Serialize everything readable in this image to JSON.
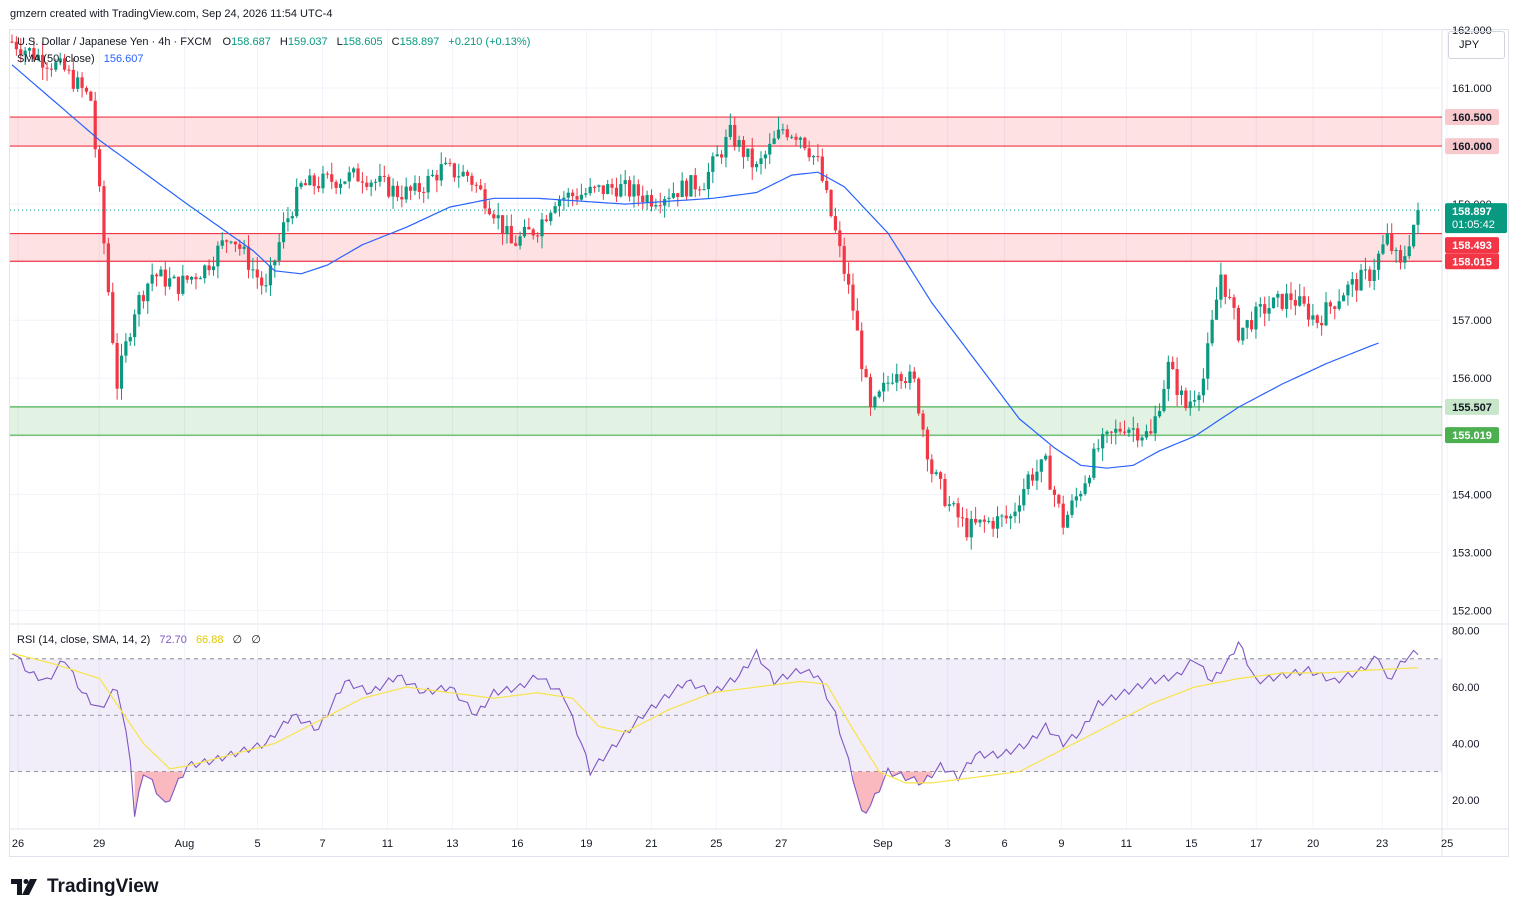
{
  "header": {
    "note": "gmzern created with TradingView.com, Sep 24, 2026 11:54 UTC-4"
  },
  "legend": {
    "symbol": "U.S. Dollar / Japanese Yen · 4h · FXCM",
    "o_label": "O",
    "o_value": "158.687",
    "h_label": "H",
    "h_value": "159.037",
    "l_label": "L",
    "l_value": "158.605",
    "c_label": "C",
    "c_value": "158.897",
    "change": "+0.210 (+0.13%)",
    "sma_label": "SMA (50, close)",
    "sma_value": "156.607"
  },
  "rsi_legend": {
    "label": "RSI (14, close, SMA, 14, 2)",
    "rsi_value": "72.70",
    "sma_value": "66.88",
    "extra1": "∅",
    "extra2": "∅"
  },
  "currency": "JPY",
  "brand": "TradingView",
  "colors": {
    "up": "#089981",
    "down": "#f23645",
    "sma": "#2962ff",
    "rsi": "#7e57c2",
    "rsi_ma": "#f7e34a",
    "res_zone": "#f23645",
    "sup_zone": "#4caf50",
    "price_tag": "#089981"
  },
  "price_labels": {
    "current": "158.897",
    "countdown": "01:05:42",
    "r2_top": "160.500",
    "r2_bottom": "160.000",
    "r1_top": "158.493",
    "r1_bottom": "158.015",
    "s1_top": "155.507",
    "s1_bottom": "155.019"
  },
  "chart_data": [
    {
      "type": "candlestick",
      "title": "U.S. Dollar / Japanese Yen · 4h · FXCM",
      "ylim": [
        151.8,
        162.0
      ],
      "yticks": [
        152,
        153,
        154,
        155,
        156,
        157,
        158,
        159,
        160,
        161,
        162
      ],
      "ytick_labels": [
        "152.000",
        "153.000",
        "154.000",
        "155.000",
        "156.000",
        "157.000",
        "158.000",
        "159.000",
        "160.000",
        "161.000",
        "162.000"
      ],
      "x_labels": [
        "26",
        "29",
        "Aug",
        "5",
        "7",
        "11",
        "13",
        "16",
        "19",
        "21",
        "25",
        "27",
        "Sep",
        "3",
        "6",
        "9",
        "11",
        "15",
        "17",
        "20",
        "23",
        "25"
      ],
      "zones": [
        {
          "kind": "resistance",
          "from": 160.0,
          "to": 160.5
        },
        {
          "kind": "resistance",
          "from": 158.015,
          "to": 158.493
        },
        {
          "kind": "support",
          "from": 155.019,
          "to": 155.507
        }
      ],
      "candle_anchors": [
        [
          0,
          161.8
        ],
        [
          12,
          161.3
        ],
        [
          18,
          160.8
        ],
        [
          22,
          157.5
        ],
        [
          24,
          155.9
        ],
        [
          28,
          157.2
        ],
        [
          32,
          157.8
        ],
        [
          38,
          157.6
        ],
        [
          44,
          157.9
        ],
        [
          50,
          158.5
        ],
        [
          54,
          158.0
        ],
        [
          58,
          157.5
        ],
        [
          62,
          158.6
        ],
        [
          66,
          159.3
        ],
        [
          72,
          159.4
        ],
        [
          80,
          159.5
        ],
        [
          88,
          159.2
        ],
        [
          92,
          159.2
        ],
        [
          98,
          159.6
        ],
        [
          104,
          159.5
        ],
        [
          110,
          158.9
        ],
        [
          114,
          158.3
        ],
        [
          120,
          158.6
        ],
        [
          124,
          159.1
        ],
        [
          132,
          159.2
        ],
        [
          138,
          159.3
        ],
        [
          146,
          159.1
        ],
        [
          150,
          159.2
        ],
        [
          158,
          159.4
        ],
        [
          164,
          160.2
        ],
        [
          170,
          159.6
        ],
        [
          176,
          160.3
        ],
        [
          180,
          160.2
        ],
        [
          184,
          159.7
        ],
        [
          188,
          158.5
        ],
        [
          192,
          157.2
        ],
        [
          196,
          155.4
        ],
        [
          202,
          156.2
        ],
        [
          206,
          155.9
        ],
        [
          210,
          154.4
        ],
        [
          214,
          153.8
        ],
        [
          218,
          153.4
        ],
        [
          222,
          153.5
        ],
        [
          228,
          153.6
        ],
        [
          232,
          154.3
        ],
        [
          236,
          154.5
        ],
        [
          240,
          153.5
        ],
        [
          244,
          154.1
        ],
        [
          248,
          154.8
        ],
        [
          254,
          155.2
        ],
        [
          260,
          155.0
        ],
        [
          264,
          156.2
        ],
        [
          268,
          155.5
        ],
        [
          272,
          156.0
        ],
        [
          276,
          157.8
        ],
        [
          280,
          156.8
        ],
        [
          286,
          157.2
        ],
        [
          292,
          157.4
        ],
        [
          298,
          157.0
        ],
        [
          304,
          157.5
        ],
        [
          310,
          157.8
        ],
        [
          314,
          158.4
        ],
        [
          317,
          157.9
        ],
        [
          321,
          158.9
        ]
      ],
      "sma50_anchors": [
        [
          0,
          161.4
        ],
        [
          20,
          160.1
        ],
        [
          40,
          159.0
        ],
        [
          55,
          158.2
        ],
        [
          60,
          157.85
        ],
        [
          66,
          157.8
        ],
        [
          72,
          157.95
        ],
        [
          80,
          158.3
        ],
        [
          90,
          158.6
        ],
        [
          100,
          158.95
        ],
        [
          110,
          159.1
        ],
        [
          120,
          159.1
        ],
        [
          130,
          159.05
        ],
        [
          140,
          159.0
        ],
        [
          150,
          159.05
        ],
        [
          160,
          159.1
        ],
        [
          170,
          159.2
        ],
        [
          178,
          159.5
        ],
        [
          184,
          159.55
        ],
        [
          190,
          159.3
        ],
        [
          200,
          158.5
        ],
        [
          210,
          157.3
        ],
        [
          220,
          156.3
        ],
        [
          230,
          155.3
        ],
        [
          238,
          154.8
        ],
        [
          244,
          154.5
        ],
        [
          250,
          154.45
        ],
        [
          256,
          154.5
        ],
        [
          262,
          154.75
        ],
        [
          270,
          155.0
        ],
        [
          280,
          155.5
        ],
        [
          290,
          155.9
        ],
        [
          300,
          156.25
        ],
        [
          310,
          156.55
        ],
        [
          312,
          156.607
        ]
      ],
      "last_close": 158.897
    },
    {
      "type": "line",
      "title": "RSI (14, close, SMA, 14, 2)",
      "ylim": [
        10,
        82
      ],
      "yticks": [
        20,
        40,
        60,
        80
      ],
      "ytick_labels": [
        "20.00",
        "40.00",
        "60.00",
        "80.00"
      ],
      "levels": [
        70,
        50,
        30
      ],
      "series": [
        {
          "name": "RSI",
          "points": [
            [
              0,
              73
            ],
            [
              4,
              65
            ],
            [
              8,
              62
            ],
            [
              12,
              70
            ],
            [
              16,
              58
            ],
            [
              20,
              52
            ],
            [
              24,
              60
            ],
            [
              27,
              35
            ],
            [
              28,
              14
            ],
            [
              30,
              30
            ],
            [
              32,
              26
            ],
            [
              35,
              18
            ],
            [
              40,
              32
            ],
            [
              46,
              34
            ],
            [
              52,
              37
            ],
            [
              58,
              40
            ],
            [
              64,
              50
            ],
            [
              70,
              45
            ],
            [
              76,
              62
            ],
            [
              82,
              58
            ],
            [
              88,
              64
            ],
            [
              94,
              58
            ],
            [
              100,
              60
            ],
            [
              106,
              50
            ],
            [
              110,
              58
            ],
            [
              116,
              60
            ],
            [
              120,
              64
            ],
            [
              126,
              57
            ],
            [
              130,
              40
            ],
            [
              132,
              30
            ],
            [
              138,
              40
            ],
            [
              144,
              50
            ],
            [
              148,
              55
            ],
            [
              154,
              62
            ],
            [
              160,
              58
            ],
            [
              166,
              64
            ],
            [
              170,
              72
            ],
            [
              174,
              62
            ],
            [
              180,
              66
            ],
            [
              184,
              64
            ],
            [
              188,
              50
            ],
            [
              192,
              28
            ],
            [
              194,
              15
            ],
            [
              196,
              18
            ],
            [
              200,
              30
            ],
            [
              204,
              28
            ],
            [
              208,
              26
            ],
            [
              212,
              32
            ],
            [
              216,
              28
            ],
            [
              220,
              36
            ],
            [
              226,
              36
            ],
            [
              232,
              40
            ],
            [
              236,
              46
            ],
            [
              240,
              40
            ],
            [
              244,
              44
            ],
            [
              248,
              54
            ],
            [
              254,
              58
            ],
            [
              260,
              62
            ],
            [
              266,
              64
            ],
            [
              270,
              70
            ],
            [
              274,
              62
            ],
            [
              278,
              70
            ],
            [
              280,
              76
            ],
            [
              284,
              62
            ],
            [
              290,
              64
            ],
            [
              296,
              66
            ],
            [
              302,
              62
            ],
            [
              308,
              66
            ],
            [
              312,
              71
            ],
            [
              314,
              62
            ],
            [
              318,
              70
            ],
            [
              321,
              72.7
            ]
          ]
        },
        {
          "name": "RSI SMA",
          "points": [
            [
              0,
              72
            ],
            [
              10,
              68
            ],
            [
              20,
              63
            ],
            [
              30,
              40
            ],
            [
              36,
              31
            ],
            [
              40,
              32
            ],
            [
              50,
              36
            ],
            [
              60,
              40
            ],
            [
              70,
              48
            ],
            [
              80,
              56
            ],
            [
              90,
              60
            ],
            [
              100,
              58
            ],
            [
              110,
              56
            ],
            [
              120,
              58
            ],
            [
              128,
              56
            ],
            [
              134,
              46
            ],
            [
              140,
              44
            ],
            [
              150,
              52
            ],
            [
              160,
              58
            ],
            [
              170,
              60
            ],
            [
              180,
              62
            ],
            [
              186,
              61
            ],
            [
              192,
              45
            ],
            [
              198,
              30
            ],
            [
              204,
              26
            ],
            [
              210,
              26
            ],
            [
              220,
              28
            ],
            [
              230,
              30
            ],
            [
              240,
              38
            ],
            [
              250,
              46
            ],
            [
              260,
              54
            ],
            [
              270,
              60
            ],
            [
              280,
              63
            ],
            [
              290,
              65
            ],
            [
              300,
              65
            ],
            [
              310,
              66
            ],
            [
              321,
              66.88
            ]
          ]
        }
      ]
    }
  ]
}
